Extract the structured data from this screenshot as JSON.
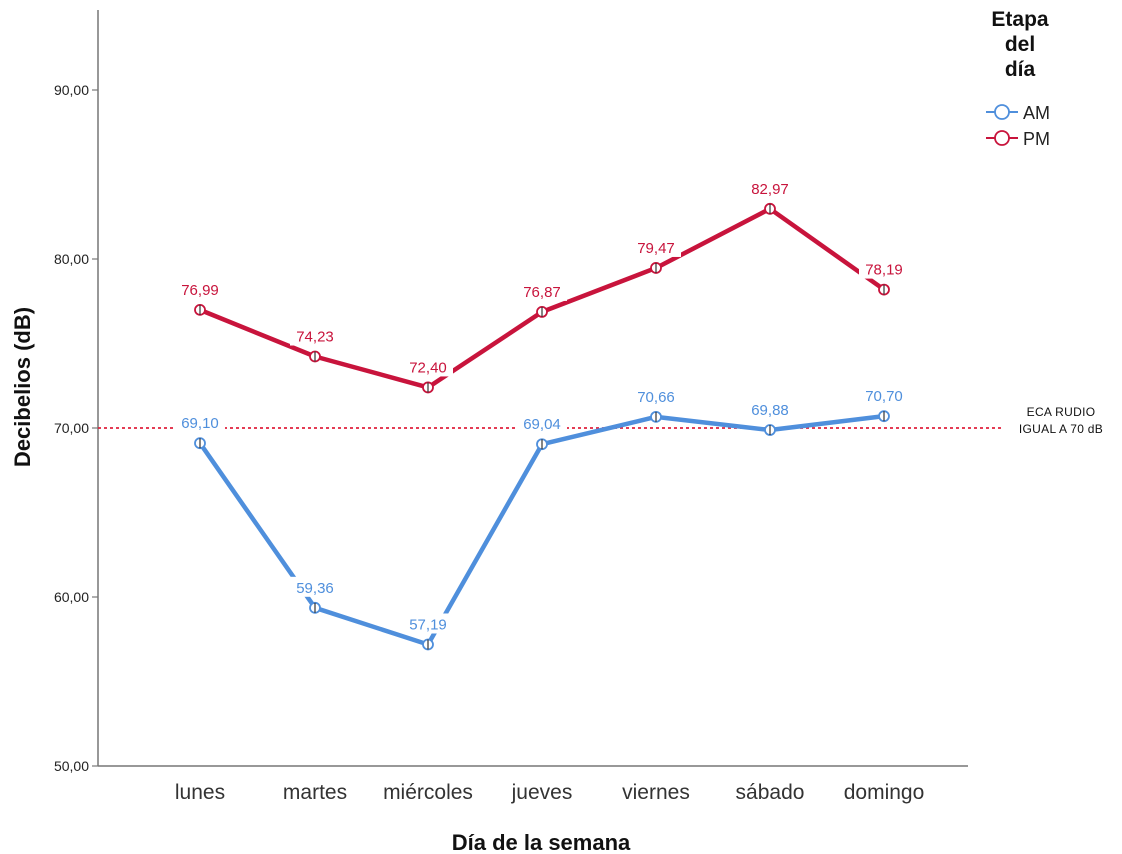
{
  "chart_data": {
    "type": "line",
    "title": "",
    "xlabel": "Día de la semana",
    "ylabel": "Decibelios (dB)",
    "categories": [
      "lunes",
      "martes",
      "miércoles",
      "jueves",
      "viernes",
      "sábado",
      "domingo"
    ],
    "ylim": [
      50,
      95
    ],
    "yticks": [
      50,
      60,
      70,
      80,
      90
    ],
    "ytick_labels": [
      "50,00",
      "60,00",
      "70,00",
      "80,00",
      "90,00"
    ],
    "grid": false,
    "legend": {
      "title_lines": [
        "Etapa",
        "del",
        "día"
      ],
      "position": "top-right"
    },
    "series": [
      {
        "name": "AM",
        "color": "#4f8fdc",
        "values": [
          69.1,
          59.36,
          57.19,
          69.04,
          70.66,
          69.88,
          70.7
        ],
        "labels": [
          "69,10",
          "59,36",
          "57,19",
          "69,04",
          "70,66",
          "69,88",
          "70,70"
        ]
      },
      {
        "name": "PM",
        "color": "#c8143c",
        "values": [
          76.99,
          74.23,
          72.4,
          76.87,
          79.47,
          82.97,
          78.19
        ],
        "labels": [
          "76,99",
          "74,23",
          "72,40",
          "76,87",
          "79,47",
          "82,97",
          "78,19"
        ]
      }
    ],
    "reference_line": {
      "value": 70,
      "color": "#e0203c",
      "style": "dotted",
      "label_lines": [
        "ECA RUDIO",
        "IGUAL A 70 dB"
      ]
    }
  }
}
